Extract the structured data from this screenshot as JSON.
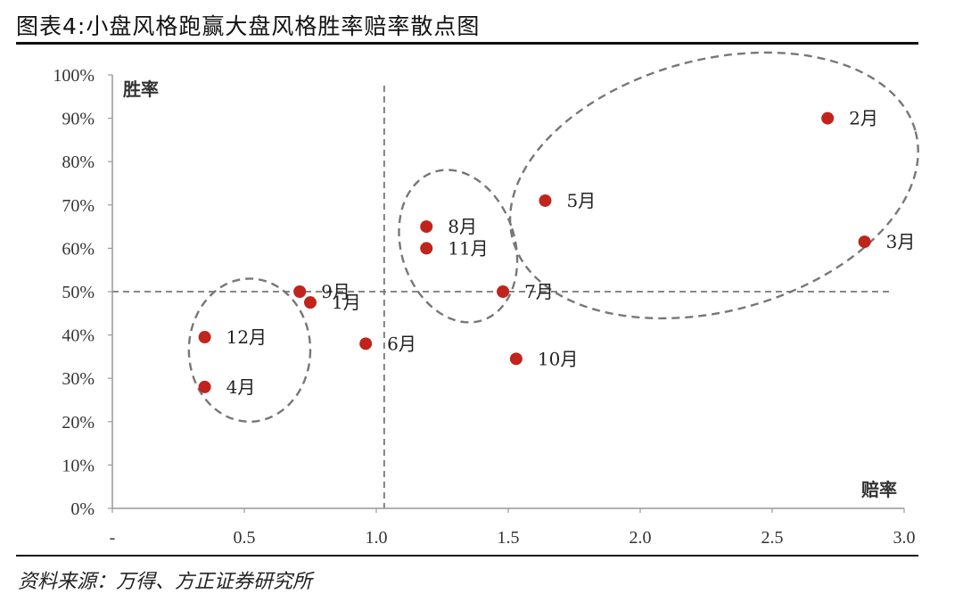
{
  "header": {
    "title": "图表4:小盘风格跑赢大盘风格胜率赔率散点图"
  },
  "footer": {
    "source": "资料来源：万得、方正证券研究所"
  },
  "chart_data": {
    "type": "scatter",
    "xlabel": "赔率",
    "ylabel": "胜率",
    "xlim": [
      0,
      3.0
    ],
    "ylim": [
      0,
      1.0
    ],
    "x_tick_labels": [
      "-",
      "0.5",
      "1.0",
      "1.5",
      "2.0",
      "2.5",
      "3.0"
    ],
    "x_ticks": [
      0,
      0.5,
      1.0,
      1.5,
      2.0,
      2.5,
      3.0
    ],
    "y_ticks": [
      0,
      0.1,
      0.2,
      0.3,
      0.4,
      0.5,
      0.6,
      0.7,
      0.8,
      0.9,
      1.0
    ],
    "y_tick_labels": [
      "0%",
      "10%",
      "20%",
      "30%",
      "40%",
      "50%",
      "60%",
      "70%",
      "80%",
      "90%",
      "100%"
    ],
    "reference_lines": {
      "x": 1.03,
      "y": 0.5
    },
    "points": [
      {
        "label": "1月",
        "x": 0.75,
        "y": 0.475
      },
      {
        "label": "2月",
        "x": 2.71,
        "y": 0.9
      },
      {
        "label": "3月",
        "x": 2.85,
        "y": 0.615
      },
      {
        "label": "4月",
        "x": 0.35,
        "y": 0.28
      },
      {
        "label": "5月",
        "x": 1.64,
        "y": 0.71
      },
      {
        "label": "6月",
        "x": 0.96,
        "y": 0.38
      },
      {
        "label": "7月",
        "x": 1.48,
        "y": 0.5
      },
      {
        "label": "8月",
        "x": 1.19,
        "y": 0.65
      },
      {
        "label": "9月",
        "x": 0.71,
        "y": 0.5
      },
      {
        "label": "10月",
        "x": 1.53,
        "y": 0.345
      },
      {
        "label": "11月",
        "x": 1.19,
        "y": 0.6
      },
      {
        "label": "12月",
        "x": 0.35,
        "y": 0.395
      }
    ],
    "clusters": [
      {
        "cx": 0.52,
        "cy": 0.365,
        "rx": 0.23,
        "ry": 0.165,
        "rot": 0
      },
      {
        "cx": 1.31,
        "cy": 0.605,
        "rx": 0.215,
        "ry": 0.18,
        "rot": -18
      },
      {
        "cx": 2.28,
        "cy": 0.745,
        "rx": 0.79,
        "ry": 0.29,
        "rot": -15
      }
    ],
    "colors": {
      "point": "#c0241c",
      "dash": "#777777",
      "axis": "#999999"
    }
  }
}
